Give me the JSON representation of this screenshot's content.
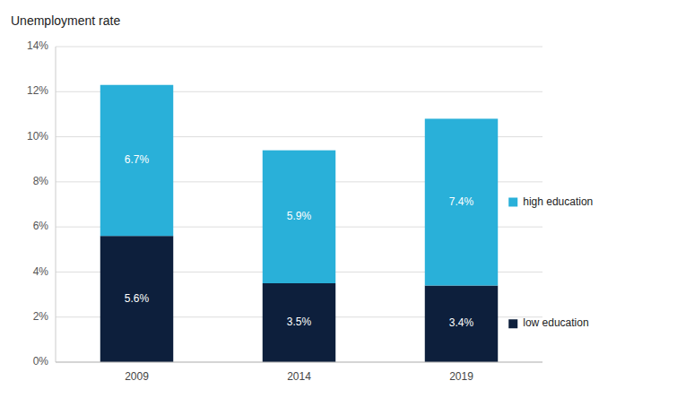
{
  "chart_data": {
    "type": "bar",
    "stacked": true,
    "y_label": "Unemployment rate",
    "categories": [
      "2009",
      "2014",
      "2019"
    ],
    "series": [
      {
        "name": "low education",
        "color": "#0d1f3c",
        "values": [
          5.6,
          3.5,
          3.4
        ],
        "value_labels": [
          "5.6%",
          "3.5%",
          "3.4%"
        ]
      },
      {
        "name": "high education",
        "color": "#29b0d9",
        "values": [
          6.7,
          5.9,
          7.4
        ],
        "value_labels": [
          "6.7%",
          "5.9%",
          "7.4%"
        ]
      }
    ],
    "ylim": [
      0,
      14
    ],
    "yticks": [
      {
        "value": 0,
        "label": "0%"
      },
      {
        "value": 2,
        "label": "2%"
      },
      {
        "value": 4,
        "label": "4%"
      },
      {
        "value": 6,
        "label": "6%"
      },
      {
        "value": 8,
        "label": "8%"
      },
      {
        "value": 10,
        "label": "10%"
      },
      {
        "value": 12,
        "label": "12%"
      },
      {
        "value": 14,
        "label": "14%"
      }
    ],
    "grid": true,
    "data_labels": true,
    "legend": "right"
  }
}
